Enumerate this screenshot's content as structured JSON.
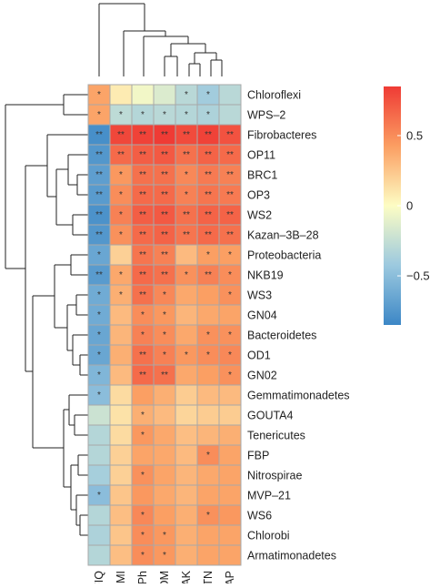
{
  "chart_data": {
    "type": "heatmap",
    "rows": [
      "Chloroflexi",
      "WPS–2",
      "Fibrobacteres",
      "OP11",
      "BRC1",
      "OP3",
      "WS2",
      "Kazan–3B–28",
      "Proteobacteria",
      "NKB19",
      "WS3",
      "GN04",
      "Bacteroidetes",
      "OD1",
      "GN02",
      "Gemmatimonadetes",
      "GOUTA4",
      "Tenericutes",
      "FBP",
      "Nitrospirae",
      "MVP–21",
      "WS6",
      "Chlorobi",
      "Armatimonadetes"
    ],
    "columns": [
      "FIQ",
      "SMI",
      "Ph",
      "SOM",
      "AK",
      "TN",
      "AP"
    ],
    "values": [
      [
        0.4,
        0.08,
        -0.05,
        -0.15,
        -0.3,
        -0.4,
        -0.3
      ],
      [
        0.4,
        -0.28,
        -0.32,
        -0.3,
        -0.32,
        -0.35,
        -0.3
      ],
      [
        -0.8,
        0.8,
        0.82,
        0.85,
        0.78,
        0.82,
        0.75
      ],
      [
        -0.75,
        0.65,
        0.7,
        0.72,
        0.62,
        0.68,
        0.65
      ],
      [
        -0.7,
        0.45,
        0.62,
        0.62,
        0.52,
        0.58,
        0.55
      ],
      [
        -0.72,
        0.5,
        0.65,
        0.65,
        0.55,
        0.6,
        0.58
      ],
      [
        -0.78,
        0.55,
        0.7,
        0.72,
        0.62,
        0.68,
        0.68
      ],
      [
        -0.75,
        0.48,
        0.65,
        0.68,
        0.6,
        0.65,
        0.62
      ],
      [
        -0.65,
        0.2,
        0.6,
        0.55,
        0.3,
        0.42,
        0.42
      ],
      [
        -0.72,
        0.38,
        0.65,
        0.62,
        0.48,
        0.55,
        0.5
      ],
      [
        -0.62,
        0.35,
        0.62,
        0.52,
        0.38,
        0.42,
        0.48
      ],
      [
        -0.62,
        0.3,
        0.5,
        0.45,
        0.32,
        0.38,
        0.4
      ],
      [
        -0.65,
        0.32,
        0.55,
        0.5,
        0.38,
        0.48,
        0.48
      ],
      [
        -0.65,
        0.35,
        0.62,
        0.55,
        0.45,
        0.5,
        0.52
      ],
      [
        -0.55,
        0.3,
        0.65,
        0.62,
        0.38,
        0.42,
        0.48
      ],
      [
        -0.5,
        0.15,
        0.42,
        0.35,
        0.22,
        0.3,
        0.3
      ],
      [
        -0.22,
        0.12,
        0.35,
        0.3,
        0.18,
        0.22,
        0.22
      ],
      [
        -0.32,
        0.15,
        0.45,
        0.38,
        0.28,
        0.32,
        0.35
      ],
      [
        -0.32,
        0.2,
        0.4,
        0.38,
        0.3,
        0.5,
        0.4
      ],
      [
        -0.38,
        0.2,
        0.48,
        0.4,
        0.32,
        0.38,
        0.4
      ],
      [
        -0.5,
        0.25,
        0.45,
        0.38,
        0.32,
        0.4,
        0.4
      ],
      [
        -0.32,
        0.28,
        0.52,
        0.42,
        0.35,
        0.48,
        0.45
      ],
      [
        -0.35,
        0.25,
        0.5,
        0.45,
        0.35,
        0.4,
        0.4
      ],
      [
        -0.32,
        0.28,
        0.5,
        0.45,
        0.35,
        0.4,
        0.4
      ]
    ],
    "significance": [
      [
        "*",
        "",
        "",
        "",
        "*",
        "*",
        ""
      ],
      [
        "*",
        "*",
        "*",
        "*",
        "*",
        "*",
        ""
      ],
      [
        "**",
        "**",
        "**",
        "**",
        "**",
        "**",
        "**"
      ],
      [
        "**",
        "**",
        "**",
        "**",
        "**",
        "**",
        "**"
      ],
      [
        "**",
        "*",
        "**",
        "**",
        "*",
        "**",
        "**"
      ],
      [
        "**",
        "*",
        "**",
        "**",
        "*",
        "**",
        "**"
      ],
      [
        "**",
        "*",
        "**",
        "**",
        "**",
        "**",
        "**"
      ],
      [
        "**",
        "*",
        "**",
        "**",
        "**",
        "**",
        "**"
      ],
      [
        "*",
        "",
        "**",
        "**",
        "",
        "*",
        "*"
      ],
      [
        "**",
        "*",
        "**",
        "**",
        "*",
        "**",
        "*"
      ],
      [
        "*",
        "*",
        "**",
        "*",
        "",
        "",
        "*"
      ],
      [
        "*",
        "",
        "*",
        "*",
        "",
        "",
        ""
      ],
      [
        "*",
        "",
        "*",
        "*",
        "",
        "*",
        "*"
      ],
      [
        "*",
        "",
        "**",
        "*",
        "*",
        "*",
        "*"
      ],
      [
        "*",
        "",
        "**",
        "**",
        "",
        "",
        "*"
      ],
      [
        "*",
        "",
        "",
        "",
        "",
        "",
        ""
      ],
      [
        "",
        "",
        "*",
        "",
        "",
        "",
        ""
      ],
      [
        "",
        "",
        "*",
        "",
        "",
        "",
        ""
      ],
      [
        "",
        "",
        "",
        "",
        "",
        "*",
        ""
      ],
      [
        "",
        "",
        "*",
        "",
        "",
        "",
        ""
      ],
      [
        "*",
        "",
        "",
        "",
        "",
        "",
        ""
      ],
      [
        "",
        "",
        "*",
        "",
        "",
        "*",
        ""
      ],
      [
        "",
        "",
        "*",
        "*",
        "",
        "",
        ""
      ],
      [
        "",
        "",
        "*",
        "*",
        "",
        "",
        ""
      ]
    ],
    "colorbar": {
      "ticks": [
        0.5,
        0,
        -0.5
      ],
      "tick_labels": [
        "0.5",
        "0",
        "−0.5"
      ],
      "range": [
        -0.85,
        0.85
      ],
      "colors": {
        "low": "#3c87c6",
        "mid": "#fdfdc4",
        "high": "#ef3b35"
      }
    },
    "cell_border_color": "#a8a8a8",
    "row_dendrogram": true,
    "column_dendrogram": true,
    "title": "",
    "xlabel": "",
    "ylabel": ""
  }
}
